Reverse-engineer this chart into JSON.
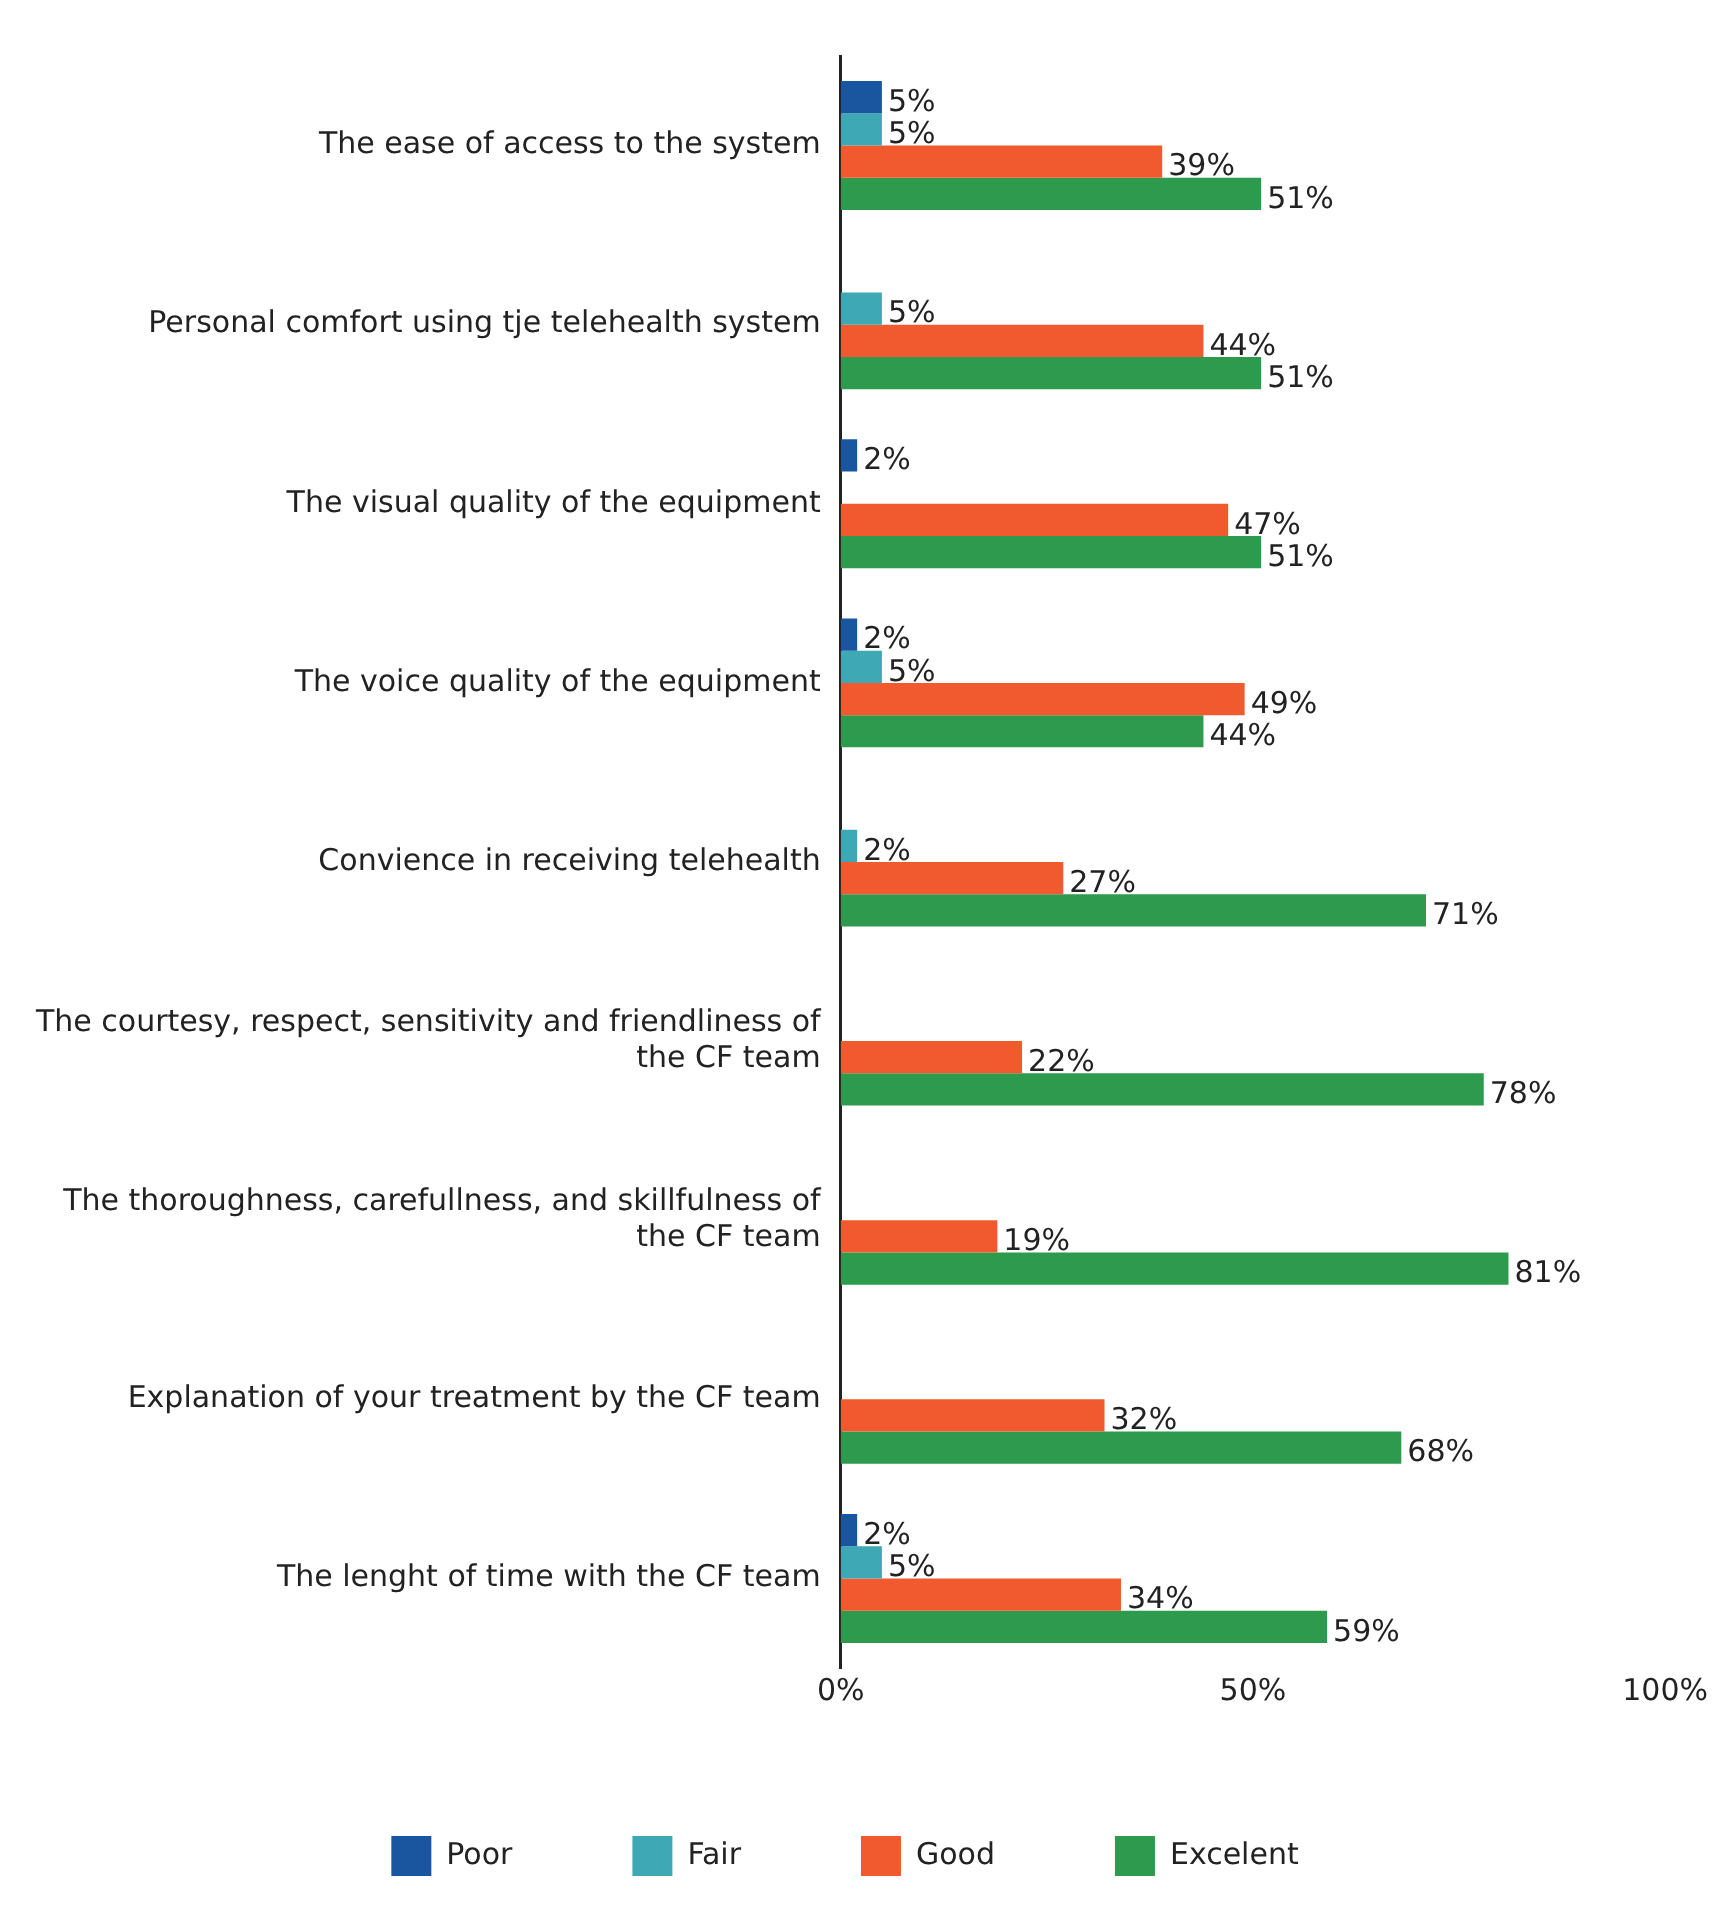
{
  "chart_data": {
    "type": "bar",
    "orientation": "horizontal",
    "categories": [
      "The ease of access to the system",
      "Personal comfort using tje telehealth system",
      "The visual quality of the equipment",
      "The voice quality of the equipment",
      "Convience in receiving telehealth",
      "The courtesy, respect, sensitivity and friendliness of the CF team",
      "The thoroughness, carefullness, and skillfulness of the CF team",
      "Explanation of your treatment by the CF team",
      "The lenght of time with the CF team"
    ],
    "series": [
      {
        "name": "Poor",
        "color": "#1a56a0",
        "values": [
          5,
          null,
          2,
          2,
          null,
          null,
          null,
          null,
          2
        ],
        "value_labels": [
          "5%",
          null,
          "2%",
          "2%",
          null,
          null,
          null,
          null,
          "2%"
        ]
      },
      {
        "name": "Fair",
        "color": "#3fa8b5",
        "values": [
          5,
          5,
          null,
          5,
          2,
          null,
          null,
          null,
          5
        ],
        "value_labels": [
          "5%",
          "5%",
          null,
          "5%",
          "2%",
          null,
          null,
          null,
          "5%"
        ]
      },
      {
        "name": "Good",
        "color": "#f05a2e",
        "values": [
          39,
          44,
          47,
          49,
          27,
          22,
          19,
          32,
          34
        ],
        "value_labels": [
          "39%",
          "44%",
          "47%",
          "49%",
          "27%",
          "22%",
          "19%",
          "32%",
          "34%"
        ]
      },
      {
        "name": "Excelent",
        "color": "#2e9a4e",
        "values": [
          51,
          51,
          51,
          44,
          71,
          78,
          81,
          68,
          59
        ],
        "value_labels": [
          "51%",
          "51%",
          "51%",
          "44%",
          "71%",
          "78%",
          "81%",
          "68%",
          "59%"
        ]
      }
    ],
    "xlim": [
      0,
      100
    ],
    "xticks": [
      {
        "value": 0,
        "label": "0%"
      },
      {
        "value": 50,
        "label": "50%"
      },
      {
        "value": 100,
        "label": "100%"
      }
    ],
    "grid": false,
    "legend": "bottom"
  }
}
